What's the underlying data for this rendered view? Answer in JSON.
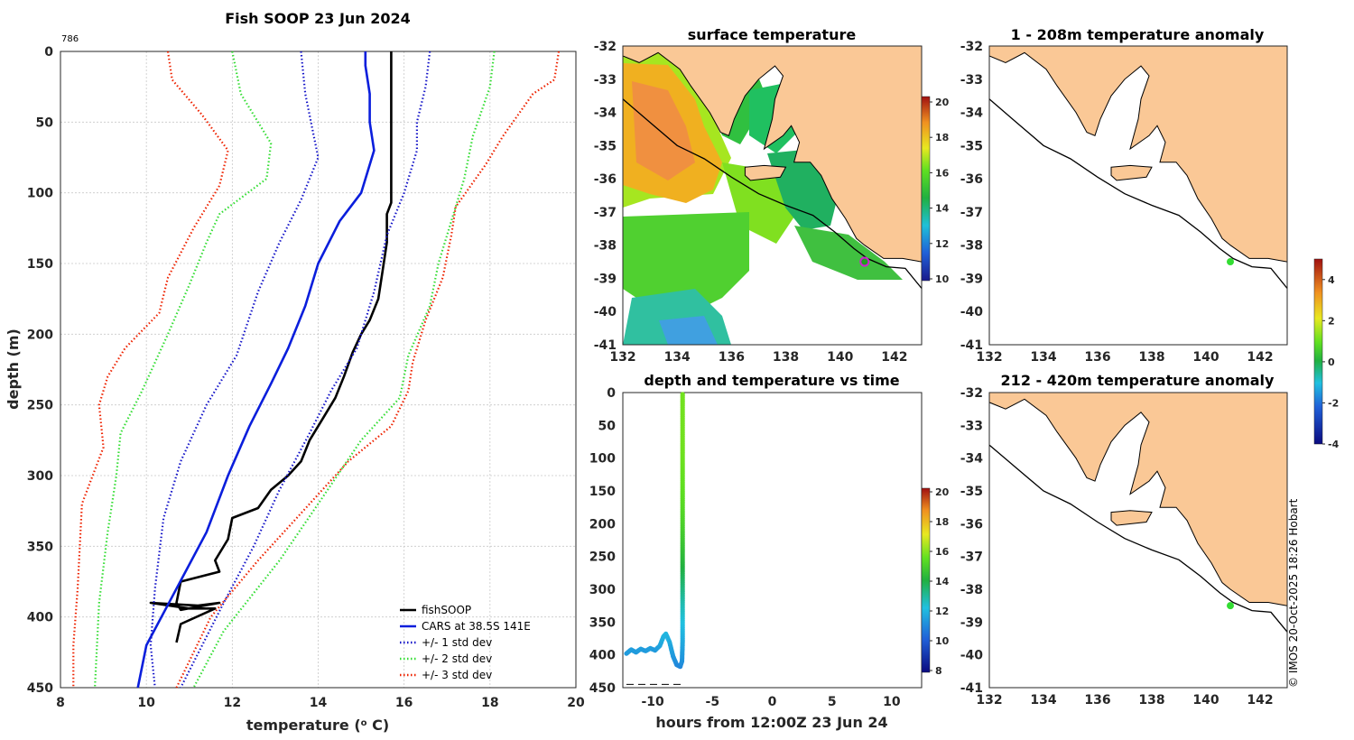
{
  "meta": {
    "profile_id": "786",
    "watermark": "© IMOS 20-Oct-2025 18:26 Hobart"
  },
  "colors": {
    "observed": "#000000",
    "cars": "#0a1edc",
    "std1": "#1414c8",
    "std2": "#33dd33",
    "std3": "#ee2200",
    "land": "#fac896",
    "marker": "#33dd33"
  },
  "chart_data": [
    {
      "id": "profile",
      "type": "line",
      "title": "Fish SOOP 23 Jun 2024",
      "xlabel": "temperature (",
      "xlabel_sup": "o",
      "xlabel_tail": " C)",
      "ylabel": "depth (m)",
      "xlim": [
        8,
        20
      ],
      "ylim": [
        0,
        450
      ],
      "xticks": [
        8,
        10,
        12,
        14,
        16,
        18,
        20
      ],
      "yticks": [
        0,
        50,
        100,
        150,
        200,
        250,
        300,
        350,
        400,
        450
      ],
      "legend": {
        "placement": "bottom-right",
        "items": [
          "fishSOOP",
          "CARS at 38.5S 141E",
          "+/- 1 std dev",
          "+/- 2 std dev",
          "+/- 3 std dev"
        ]
      },
      "series": [
        {
          "name": "fishSOOP",
          "style": "solid",
          "color": "#000000",
          "points": [
            [
              15.7,
              0
            ],
            [
              15.7,
              60
            ],
            [
              15.7,
              107
            ],
            [
              15.6,
              115
            ],
            [
              15.6,
              135
            ],
            [
              15.5,
              155
            ],
            [
              15.4,
              175
            ],
            [
              15.2,
              190
            ],
            [
              15.0,
              200
            ],
            [
              14.8,
              213
            ],
            [
              14.6,
              230
            ],
            [
              14.4,
              245
            ],
            [
              14.1,
              260
            ],
            [
              13.8,
              275
            ],
            [
              13.6,
              290
            ],
            [
              13.3,
              300
            ],
            [
              12.9,
              310
            ],
            [
              12.6,
              323
            ],
            [
              12.0,
              330
            ],
            [
              11.9,
              345
            ],
            [
              11.6,
              360
            ],
            [
              11.7,
              368
            ],
            [
              10.8,
              375
            ],
            [
              10.7,
              390
            ],
            [
              10.8,
              395
            ],
            [
              11.7,
              390
            ],
            [
              11.2,
              392
            ],
            [
              10.1,
              390
            ],
            [
              11.0,
              394
            ],
            [
              11.6,
              394
            ],
            [
              10.8,
              405
            ],
            [
              10.7,
              418
            ]
          ]
        },
        {
          "name": "CARS at 38.5S 141E",
          "style": "solid",
          "color": "#0a1edc",
          "points": [
            [
              15.1,
              0
            ],
            [
              15.1,
              10
            ],
            [
              15.2,
              30
            ],
            [
              15.2,
              50
            ],
            [
              15.3,
              70
            ],
            [
              15.0,
              100
            ],
            [
              14.5,
              120
            ],
            [
              14.0,
              150
            ],
            [
              13.7,
              180
            ],
            [
              13.3,
              210
            ],
            [
              12.9,
              235
            ],
            [
              12.4,
              265
            ],
            [
              11.9,
              300
            ],
            [
              11.4,
              340
            ],
            [
              10.7,
              380
            ],
            [
              10.0,
              420
            ],
            [
              9.8,
              450
            ]
          ]
        },
        {
          "name": "+/- 1 std dev",
          "style": "dotted",
          "color": "#1414c8",
          "points": [
            [
              16.6,
              0
            ],
            [
              16.5,
              25
            ],
            [
              16.3,
              50
            ],
            [
              16.3,
              70
            ],
            [
              16.0,
              100
            ],
            [
              15.6,
              130
            ],
            [
              15.3,
              170
            ],
            [
              14.9,
              210
            ],
            [
              14.3,
              240
            ],
            [
              13.8,
              270
            ],
            [
              13.1,
              310
            ],
            [
              12.5,
              350
            ],
            [
              11.8,
              390
            ],
            [
              10.8,
              450
            ]
          ]
        },
        {
          "name": "+/- 1 std dev",
          "style": "dotted",
          "color": "#1414c8",
          "points": [
            [
              13.6,
              0
            ],
            [
              13.7,
              30
            ],
            [
              13.9,
              60
            ],
            [
              14.0,
              75
            ],
            [
              13.6,
              105
            ],
            [
              13.1,
              135
            ],
            [
              12.6,
              170
            ],
            [
              12.1,
              215
            ],
            [
              11.4,
              250
            ],
            [
              10.8,
              290
            ],
            [
              10.4,
              330
            ],
            [
              10.2,
              380
            ],
            [
              10.1,
              420
            ],
            [
              10.2,
              450
            ]
          ]
        },
        {
          "name": "+/- 2 std dev",
          "style": "dotted",
          "color": "#33dd33",
          "points": [
            [
              18.1,
              0
            ],
            [
              18.0,
              25
            ],
            [
              17.6,
              60
            ],
            [
              17.4,
              90
            ],
            [
              17.1,
              120
            ],
            [
              16.8,
              150
            ],
            [
              16.6,
              180
            ],
            [
              16.1,
              215
            ],
            [
              15.9,
              245
            ],
            [
              15.0,
              275
            ],
            [
              14.0,
              320
            ],
            [
              13.1,
              360
            ],
            [
              11.8,
              410
            ],
            [
              11.1,
              450
            ]
          ]
        },
        {
          "name": "+/- 2 std dev",
          "style": "dotted",
          "color": "#33dd33",
          "points": [
            [
              12.0,
              0
            ],
            [
              12.2,
              30
            ],
            [
              12.9,
              65
            ],
            [
              12.8,
              90
            ],
            [
              11.7,
              115
            ],
            [
              11.4,
              135
            ],
            [
              11.0,
              165
            ],
            [
              10.5,
              200
            ],
            [
              9.9,
              240
            ],
            [
              9.4,
              270
            ],
            [
              9.3,
              300
            ],
            [
              9.1,
              340
            ],
            [
              8.9,
              390
            ],
            [
              8.8,
              450
            ]
          ]
        },
        {
          "name": "+/- 3 std dev",
          "style": "dotted",
          "color": "#ee2200",
          "points": [
            [
              19.6,
              0
            ],
            [
              19.5,
              20
            ],
            [
              19.0,
              30
            ],
            [
              18.3,
              60
            ],
            [
              17.9,
              80
            ],
            [
              17.2,
              110
            ],
            [
              17.1,
              130
            ],
            [
              16.9,
              160
            ],
            [
              16.5,
              190
            ],
            [
              16.2,
              220
            ],
            [
              16.1,
              240
            ],
            [
              15.7,
              265
            ],
            [
              14.7,
              290
            ],
            [
              13.5,
              330
            ],
            [
              12.6,
              360
            ],
            [
              11.5,
              400
            ],
            [
              10.7,
              450
            ]
          ]
        },
        {
          "name": "+/- 3 std dev",
          "style": "dotted",
          "color": "#ee2200",
          "points": [
            [
              10.5,
              0
            ],
            [
              10.6,
              20
            ],
            [
              11.3,
              45
            ],
            [
              11.9,
              70
            ],
            [
              11.7,
              95
            ],
            [
              11.1,
              125
            ],
            [
              10.5,
              160
            ],
            [
              10.3,
              185
            ],
            [
              9.5,
              210
            ],
            [
              9.1,
              230
            ],
            [
              8.9,
              250
            ],
            [
              9.0,
              280
            ],
            [
              8.5,
              320
            ],
            [
              8.4,
              380
            ],
            [
              8.3,
              420
            ],
            [
              8.3,
              450
            ]
          ]
        }
      ]
    },
    {
      "id": "surface",
      "type": "heatmap",
      "title": "surface temperature",
      "xlim": [
        132,
        143
      ],
      "ylim": [
        -41,
        -32
      ],
      "xticks": [
        132,
        134,
        136,
        138,
        140,
        142
      ],
      "yticks": [
        -32,
        -33,
        -34,
        -35,
        -36,
        -37,
        -38,
        -39,
        -40,
        -41
      ],
      "colorbar": {
        "min": 10,
        "max": 20,
        "ticks": [
          10,
          12,
          14,
          16,
          18,
          20
        ]
      },
      "marker": {
        "lon": 140.9,
        "lat": -38.5
      }
    },
    {
      "id": "anom_shallow",
      "type": "heatmap",
      "title": "1 - 208m temperature anomaly",
      "xlim": [
        132,
        143
      ],
      "ylim": [
        -41,
        -32
      ],
      "xticks": [
        132,
        134,
        136,
        138,
        140,
        142
      ],
      "yticks": [
        -32,
        -33,
        -34,
        -35,
        -36,
        -37,
        -38,
        -39,
        -40,
        -41
      ],
      "marker": {
        "lon": 140.9,
        "lat": -38.5
      }
    },
    {
      "id": "anom_deep",
      "type": "heatmap",
      "title": "212 - 420m temperature anomaly",
      "xlim": [
        132,
        143
      ],
      "ylim": [
        -41,
        -32
      ],
      "xticks": [
        132,
        134,
        136,
        138,
        140,
        142
      ],
      "yticks": [
        -32,
        -33,
        -34,
        -35,
        -36,
        -37,
        -38,
        -39,
        -40,
        -41
      ],
      "marker": {
        "lon": 140.9,
        "lat": -38.5
      }
    },
    {
      "id": "anomaly_colorbar",
      "type": "heatmap",
      "min": -4,
      "max": 5,
      "ticks": [
        -4,
        -2,
        0,
        2,
        4
      ]
    },
    {
      "id": "timeseries",
      "type": "scatter",
      "title": "depth and temperature vs time",
      "xlabel": "hours from 12:00Z 23 Jun 24",
      "xlim": [
        -12.5,
        12.5
      ],
      "ylim": [
        0,
        450
      ],
      "xticks": [
        -10,
        -5,
        0,
        5,
        10
      ],
      "yticks": [
        0,
        50,
        100,
        150,
        200,
        250,
        300,
        350,
        400,
        450
      ],
      "colorbar": {
        "min": 8,
        "max": 20,
        "ticks": [
          8,
          10,
          12,
          14,
          16,
          18,
          20
        ]
      },
      "points": [
        [
          -12.2,
          398,
          11.2
        ],
        [
          -11.8,
          392,
          11.3
        ],
        [
          -11.4,
          396,
          11.2
        ],
        [
          -11.0,
          391,
          11.3
        ],
        [
          -10.6,
          394,
          11.2
        ],
        [
          -10.2,
          390,
          11.3
        ],
        [
          -9.8,
          393,
          11.2
        ],
        [
          -9.4,
          386,
          11.4
        ],
        [
          -9.1,
          372,
          11.7
        ],
        [
          -8.9,
          368,
          11.8
        ],
        [
          -8.6,
          380,
          11.6
        ],
        [
          -8.3,
          402,
          11.2
        ],
        [
          -8.0,
          415,
          10.9
        ],
        [
          -7.7,
          418,
          10.8
        ],
        [
          -7.55,
          410,
          11.0
        ],
        [
          -7.5,
          380,
          11.5
        ],
        [
          -7.5,
          350,
          12.0
        ],
        [
          -7.5,
          320,
          12.6
        ],
        [
          -7.5,
          290,
          13.4
        ],
        [
          -7.5,
          260,
          14.1
        ],
        [
          -7.5,
          230,
          14.6
        ],
        [
          -7.5,
          200,
          15.0
        ],
        [
          -7.5,
          170,
          15.3
        ],
        [
          -7.5,
          140,
          15.5
        ],
        [
          -7.5,
          110,
          15.6
        ],
        [
          -7.5,
          80,
          15.7
        ],
        [
          -7.5,
          50,
          15.7
        ],
        [
          -7.5,
          20,
          15.7
        ],
        [
          -7.5,
          0,
          15.7
        ]
      ],
      "reference_depth": 445
    }
  ]
}
